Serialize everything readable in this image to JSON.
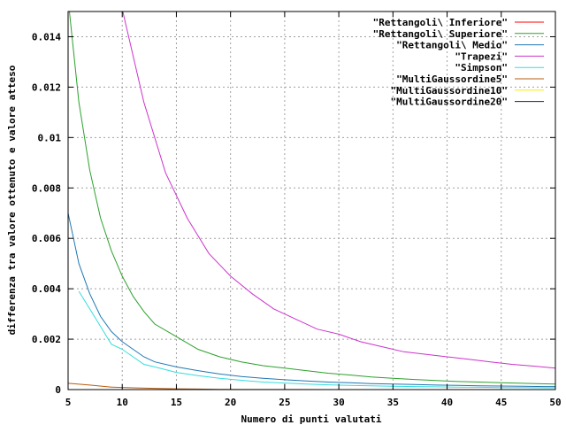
{
  "chart_data": {
    "type": "line",
    "title": "",
    "xlabel": "Numero di punti valutati",
    "ylabel": "differenza tra valore ottenuto e valore atteso",
    "xlim": [
      5,
      50
    ],
    "ylim": [
      0,
      0.015
    ],
    "xticks": [
      "5",
      "10",
      "15",
      "20",
      "25",
      "30",
      "35",
      "40",
      "45",
      "50"
    ],
    "yticks": [
      "0",
      "0.002",
      "0.004",
      "0.006",
      "0.008",
      "0.01",
      "0.012",
      "0.014"
    ],
    "grid": true,
    "legend_position": "top-right",
    "series": [
      {
        "name": "\"Rettangoli\\ Inferiore\"",
        "color": "#ff0000",
        "x": [],
        "y": []
      },
      {
        "name": "\"Rettangoli\\ Superiore\"",
        "color": "#2ca02c",
        "x": [
          5,
          6,
          7,
          8,
          9,
          10,
          11,
          12,
          13,
          15,
          17,
          19,
          21,
          23,
          25,
          27,
          29,
          31,
          33,
          35,
          37,
          39,
          41,
          43,
          45,
          47,
          49,
          50
        ],
        "y": [
          0.0155,
          0.0114,
          0.0087,
          0.0068,
          0.0055,
          0.0045,
          0.0037,
          0.0031,
          0.0026,
          0.0021,
          0.0016,
          0.0013,
          0.0011,
          0.00095,
          0.00085,
          0.00075,
          0.00065,
          0.00058,
          0.0005,
          0.00045,
          0.0004,
          0.00036,
          0.00032,
          0.0003,
          0.00027,
          0.00025,
          0.00023,
          0.00022
        ]
      },
      {
        "name": "\"Rettangoli\\ Medio\"",
        "color": "#1f77b4",
        "x": [
          5,
          6,
          7,
          8,
          9,
          10,
          11,
          12,
          13,
          15,
          17,
          19,
          21,
          23,
          25,
          27,
          29,
          31,
          33,
          35,
          37,
          39,
          41,
          43,
          45,
          47,
          49,
          50
        ],
        "y": [
          0.007,
          0.005,
          0.0038,
          0.0029,
          0.0023,
          0.0019,
          0.0016,
          0.0013,
          0.0011,
          0.0009,
          0.00075,
          0.00062,
          0.00052,
          0.00045,
          0.00039,
          0.00034,
          0.0003,
          0.00027,
          0.00024,
          0.00022,
          0.0002,
          0.00018,
          0.00017,
          0.00015,
          0.00014,
          0.00013,
          0.00012,
          0.00012
        ]
      },
      {
        "name": "\"Trapezi\"",
        "color": "#cc33cc",
        "x": [
          10,
          12,
          14,
          16,
          18,
          20,
          22,
          24,
          26,
          28,
          30,
          32,
          34,
          36,
          38,
          40,
          42,
          44,
          46,
          48,
          50
        ],
        "y": [
          0.0151,
          0.0114,
          0.0086,
          0.0068,
          0.0054,
          0.0045,
          0.0038,
          0.0032,
          0.0028,
          0.0024,
          0.0022,
          0.0019,
          0.0017,
          0.0015,
          0.0014,
          0.0013,
          0.0012,
          0.0011,
          0.001,
          0.00093,
          0.00085
        ]
      },
      {
        "name": "\"Simpson\"",
        "color": "#33dddd",
        "x": [
          6,
          7,
          8,
          9,
          10,
          11,
          12,
          13,
          15,
          17,
          19,
          21,
          23,
          25,
          27,
          29,
          31,
          33,
          35,
          37,
          39,
          41,
          43,
          45,
          47,
          49,
          50
        ],
        "y": [
          0.0039,
          0.0032,
          0.0025,
          0.0018,
          0.0016,
          0.0013,
          0.001,
          0.0009,
          0.00068,
          0.00055,
          0.00045,
          0.00037,
          0.0003,
          0.00026,
          0.00022,
          0.00019,
          0.00017,
          0.00015,
          0.00013,
          0.00012,
          0.00011,
          0.0001,
          9e-05,
          8e-05,
          8e-05,
          7e-05,
          7e-05
        ]
      },
      {
        "name": "\"MultiGaussordine5\"",
        "color": "#b85c10",
        "x": [
          5,
          7,
          9,
          11,
          13,
          15,
          17,
          19,
          21,
          25,
          30,
          35,
          40,
          45,
          50
        ],
        "y": [
          0.00025,
          0.00018,
          0.0001,
          7e-05,
          5e-05,
          3e-05,
          2e-05,
          1e-05,
          5e-06,
          2e-06,
          1e-06,
          5e-07,
          2e-07,
          1e-07,
          1e-07
        ]
      },
      {
        "name": "\"MultiGaussordine10\"",
        "color": "#ffee00",
        "x": [],
        "y": []
      },
      {
        "name": "\"MultiGaussordine20\"",
        "color": "#1a1a6e",
        "x": [],
        "y": []
      }
    ]
  }
}
